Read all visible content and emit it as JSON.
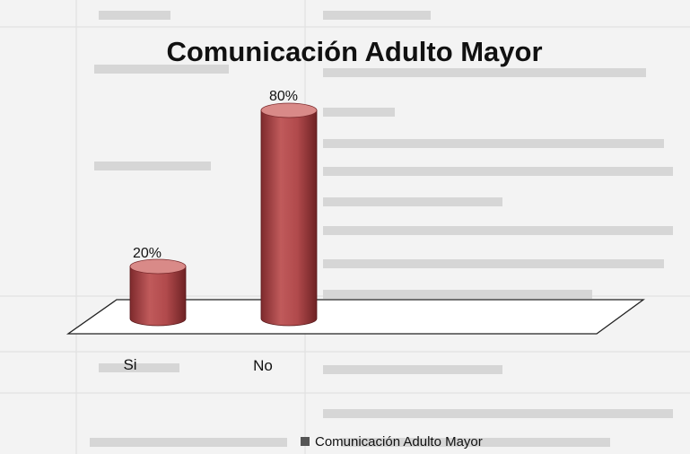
{
  "chart_data": {
    "type": "bar",
    "style": "3d-cylinder",
    "title": "Comunicación Adulto Mayor",
    "categories": [
      "Si",
      "No"
    ],
    "series": [
      {
        "name": "Comunicación Adulto Mayor",
        "values": [
          20,
          80
        ]
      }
    ],
    "data_labels": [
      "20%",
      "80%"
    ],
    "unit": "%",
    "ylim": [
      0,
      100
    ],
    "grid": false,
    "legend_position": "bottom",
    "colors": {
      "bar_body": "#b14a4c",
      "bar_top": "#d98a88",
      "legend_swatch": "#555555",
      "floor_stroke": "#222222"
    }
  }
}
